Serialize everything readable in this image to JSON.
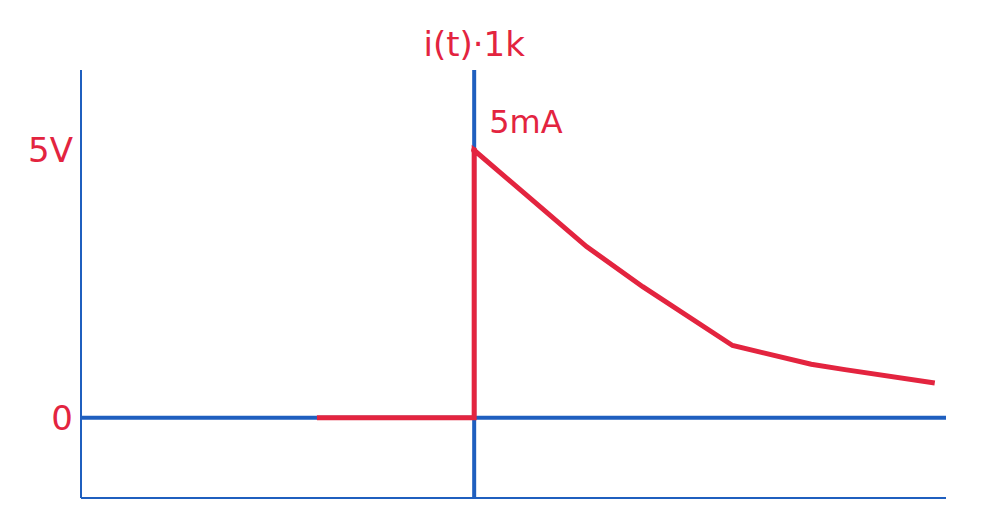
{
  "chart_data": {
    "type": "line",
    "ylabel": "i(t)·1k",
    "x": [
      -1.4,
      0,
      0,
      0.5,
      1,
      1.5,
      2.3,
      3,
      3.3,
      4.1
    ],
    "values": [
      0,
      0,
      5,
      4.1,
      3.2,
      2.45,
      1.35,
      1.0,
      0.9,
      0.65
    ],
    "color": "#e3243f",
    "xlim": [
      -3.5,
      4.2
    ],
    "ylim": [
      -1.5,
      6.5
    ],
    "yticks": [
      0,
      {
        "value": 5,
        "label": "5V"
      }
    ],
    "tick_labels": "y",
    "grid": false,
    "annotations": [
      {
        "text": "5mA",
        "x": 0,
        "y": 5
      }
    ]
  }
}
